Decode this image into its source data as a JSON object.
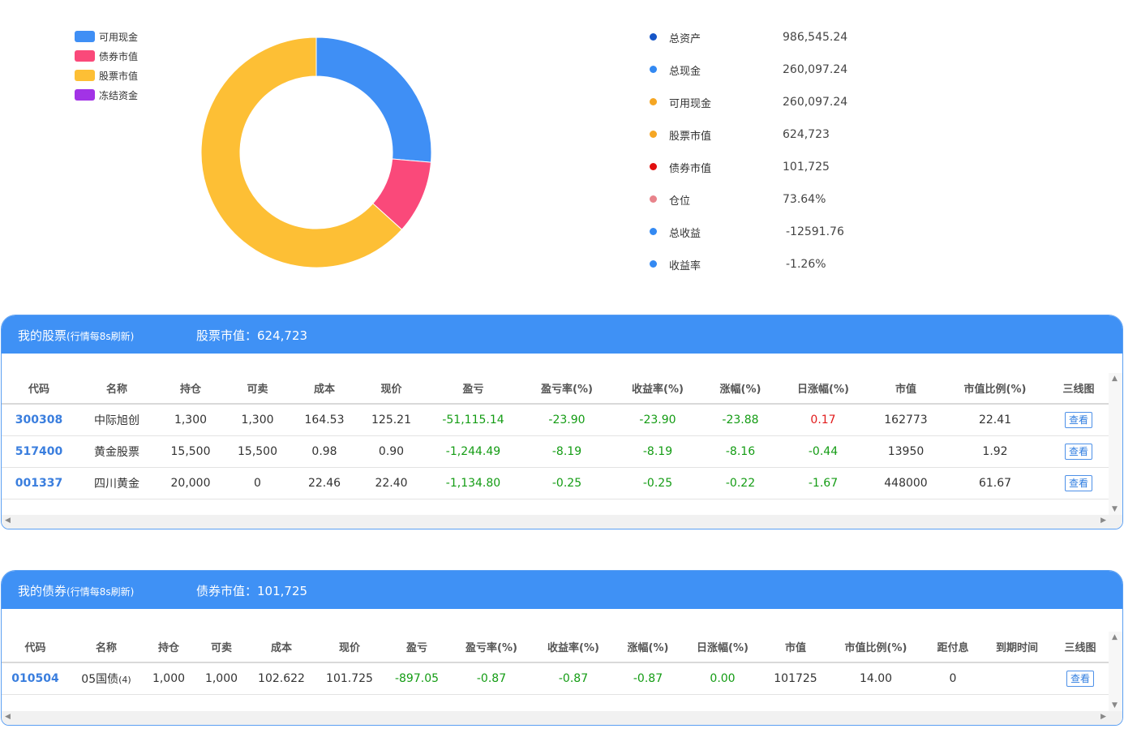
{
  "legend": [
    {
      "label": "可用现金",
      "color": "#3f8ff5"
    },
    {
      "label": "债券市值",
      "color": "#fa497a"
    },
    {
      "label": "股票市值",
      "color": "#fdbf35"
    },
    {
      "label": "冻结资金",
      "color": "#a233e6"
    }
  ],
  "chart_data": {
    "type": "pie",
    "variant": "donut",
    "slices": [
      {
        "label": "可用现金",
        "value": 260097.24,
        "color": "#3f8ff5"
      },
      {
        "label": "债券市值",
        "value": 101725,
        "color": "#fa497a"
      },
      {
        "label": "股票市值",
        "value": 624723,
        "color": "#fdbf35"
      },
      {
        "label": "冻结资金",
        "value": 0,
        "color": "#a233e6"
      }
    ],
    "legend_position": "top-left"
  },
  "summary": [
    {
      "label": "总资产",
      "value": "986,545.24",
      "color": "#1555c7"
    },
    {
      "label": "总现金",
      "value": "260,097.24",
      "color": "#3389f2"
    },
    {
      "label": "可用现金",
      "value": "260,097.24",
      "color": "#f5a623"
    },
    {
      "label": "股票市值",
      "value": "624,723",
      "color": "#f5a623"
    },
    {
      "label": "债券市值",
      "value": "101,725",
      "color": "#e10f0f"
    },
    {
      "label": "仓位",
      "value": "73.64%",
      "color": "#e8838b"
    },
    {
      "label": "总收益",
      "value": "-12591.76",
      "color": "#3389f2"
    },
    {
      "label": "收益率",
      "value": "-1.26%",
      "color": "#3389f2"
    }
  ],
  "stocks": {
    "title": "我的股票",
    "title_note": "(行情每8s刷新)",
    "market_value_label": "股票市值：624,723",
    "columns": [
      "代码",
      "名称",
      "持仓",
      "可卖",
      "成本",
      "现价",
      "盈亏",
      "盈亏率(%)",
      "收益率(%)",
      "涨幅(%)",
      "日涨幅(%)",
      "市值",
      "市值比例(%)",
      "三线图"
    ],
    "rows": [
      {
        "code": "300308",
        "name": "中际旭创",
        "hold": "1,300",
        "sellable": "1,300",
        "cost": "164.53",
        "price": "125.21",
        "pnl": "-51,115.14",
        "pnl_rate": "-23.90",
        "return_rate": "-23.90",
        "change": "-23.88",
        "daily_change": "0.17",
        "mv": "162773",
        "mv_ratio": "22.41",
        "action": "查看"
      },
      {
        "code": "517400",
        "name": "黄金股票",
        "hold": "15,500",
        "sellable": "15,500",
        "cost": "0.98",
        "price": "0.90",
        "pnl": "-1,244.49",
        "pnl_rate": "-8.19",
        "return_rate": "-8.19",
        "change": "-8.16",
        "daily_change": "-0.44",
        "mv": "13950",
        "mv_ratio": "1.92",
        "action": "查看"
      },
      {
        "code": "001337",
        "name": "四川黄金",
        "hold": "20,000",
        "sellable": "0",
        "cost": "22.46",
        "price": "22.40",
        "pnl": "-1,134.80",
        "pnl_rate": "-0.25",
        "return_rate": "-0.25",
        "change": "-0.22",
        "daily_change": "-1.67",
        "mv": "448000",
        "mv_ratio": "61.67",
        "action": "查看"
      }
    ]
  },
  "bonds": {
    "title": "我的债券",
    "title_note": "(行情每8s刷新)",
    "market_value_label": "债券市值：101,725",
    "columns": [
      "代码",
      "名称",
      "持仓",
      "可卖",
      "成本",
      "现价",
      "盈亏",
      "盈亏率(%)",
      "收益率(%)",
      "涨幅(%)",
      "日涨幅(%)",
      "市值",
      "市值比例(%)",
      "距付息",
      "到期时间",
      "三线图"
    ],
    "rows": [
      {
        "code": "010504",
        "name": "05国债",
        "name_suffix": "(4)",
        "hold": "1,000",
        "sellable": "1,000",
        "cost": "102.622",
        "price": "101.725",
        "pnl": "-897.05",
        "pnl_rate": "-0.87",
        "return_rate": "-0.87",
        "change": "-0.87",
        "daily_change": "0.00",
        "mv": "101725",
        "mv_ratio": "14.00",
        "to_coupon": "0",
        "maturity": "",
        "action": "查看"
      }
    ]
  }
}
